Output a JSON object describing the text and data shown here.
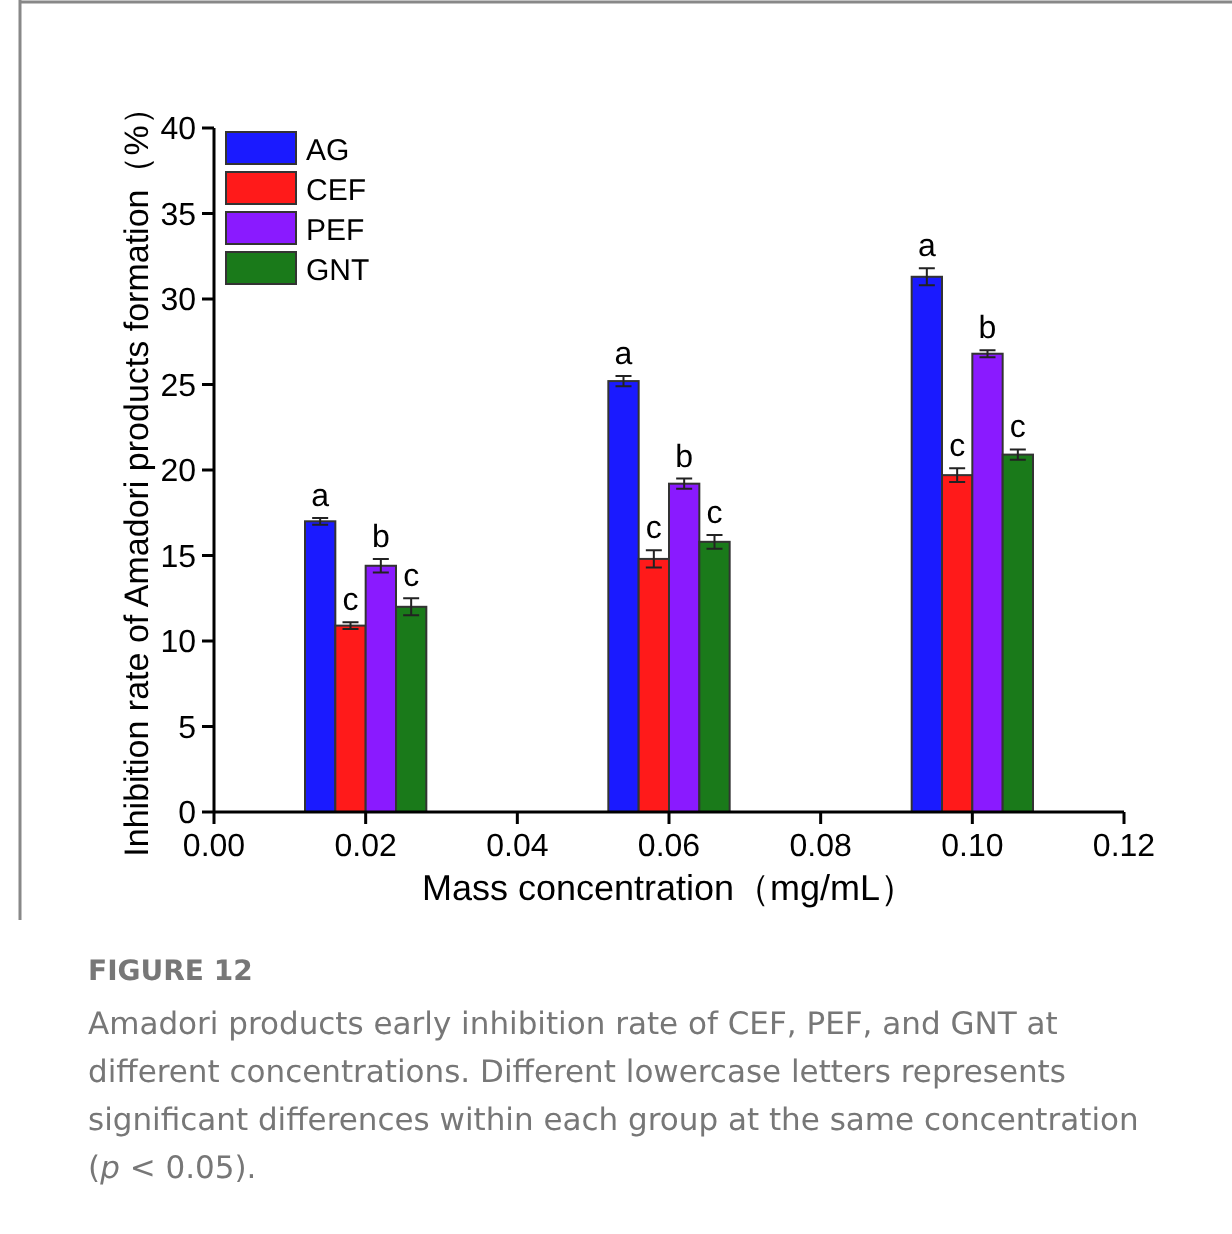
{
  "chart_data": {
    "type": "bar",
    "xlabel": "Mass concentration（mg/mL）",
    "ylabel": "Inhibition rate of Amadori products formation（%）",
    "xlim": [
      0,
      0.12
    ],
    "xticks": [
      {
        "value": 0,
        "label": "0.00"
      },
      {
        "value": 0.02,
        "label": "0.02"
      },
      {
        "value": 0.04,
        "label": "0.04"
      },
      {
        "value": 0.06,
        "label": "0.06"
      },
      {
        "value": 0.08,
        "label": "0.08"
      },
      {
        "value": 0.1,
        "label": "0.10"
      },
      {
        "value": 0.12,
        "label": "0.12"
      }
    ],
    "ylim": [
      0,
      40
    ],
    "yticks": [
      0,
      5,
      10,
      15,
      20,
      25,
      30,
      35,
      40
    ],
    "legend": "top left",
    "grid": false,
    "series": [
      {
        "name": "AG",
        "color": "#1a1aff",
        "x": [
          0.014,
          0.054,
          0.094
        ],
        "values": [
          17.0,
          25.2,
          31.3
        ],
        "errors": [
          0.2,
          0.3,
          0.5
        ]
      },
      {
        "name": "CEF",
        "color": "#ff1a1a",
        "x": [
          0.018,
          0.058,
          0.098
        ],
        "values": [
          10.9,
          14.8,
          19.7
        ],
        "errors": [
          0.2,
          0.5,
          0.4
        ]
      },
      {
        "name": "PEF",
        "color": "#8a1aff",
        "x": [
          0.022,
          0.062,
          0.102
        ],
        "values": [
          14.4,
          19.2,
          26.8
        ],
        "errors": [
          0.4,
          0.3,
          0.2
        ]
      },
      {
        "name": "GNT",
        "color": "#1a7a1a",
        "x": [
          0.026,
          0.066,
          0.106
        ],
        "values": [
          12.0,
          15.8,
          20.9
        ],
        "errors": [
          0.5,
          0.4,
          0.3
        ]
      }
    ],
    "annotations": [
      {
        "text": "a",
        "x": 0.014,
        "y": 17.0
      },
      {
        "text": "c",
        "x": 0.018,
        "y": 10.9
      },
      {
        "text": "b",
        "x": 0.022,
        "y": 14.4
      },
      {
        "text": "c",
        "x": 0.026,
        "y": 12.0
      },
      {
        "text": "a",
        "x": 0.054,
        "y": 25.2
      },
      {
        "text": "c",
        "x": 0.058,
        "y": 14.8
      },
      {
        "text": "b",
        "x": 0.062,
        "y": 19.2
      },
      {
        "text": "c",
        "x": 0.066,
        "y": 15.8
      },
      {
        "text": "a",
        "x": 0.094,
        "y": 31.3
      },
      {
        "text": "c",
        "x": 0.098,
        "y": 19.7
      },
      {
        "text": "b",
        "x": 0.102,
        "y": 26.8
      },
      {
        "text": "c",
        "x": 0.106,
        "y": 20.9
      },
      "FIGURE 12",
      "Amadori products early inhibition rate of CEF, PEF, and GNT at different concentrations. Different lowercase letters represents significant differences within each group at the same concentration (*p* < 0.05)."
    ]
  }
}
